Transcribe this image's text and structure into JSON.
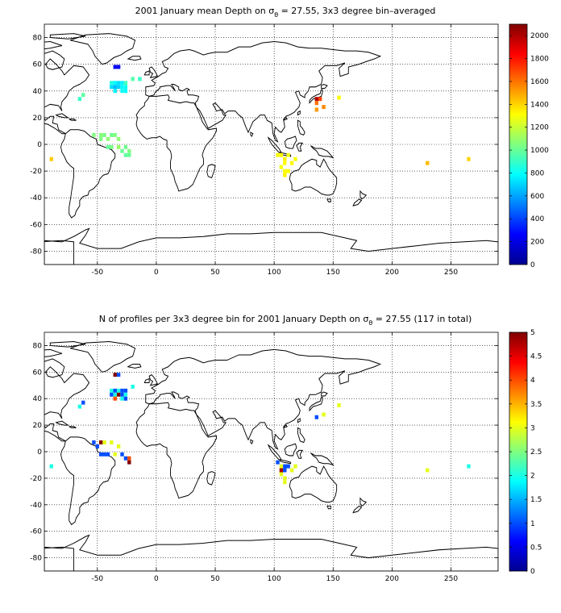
{
  "maps": [
    {
      "title_pre": "2001 January mean Depth on σ",
      "title_sub": "θ",
      "title_post": " = 27.55, 3x3 degree bin–averaged",
      "xlim": [
        -95,
        290
      ],
      "ylim": [
        -90,
        90
      ],
      "x_ticks": [
        "-50",
        "0",
        "50",
        "100",
        "150",
        "200",
        "250"
      ],
      "y_ticks": [
        "80",
        "60",
        "40",
        "20",
        "0",
        "-20",
        "-40",
        "-60",
        "-80"
      ],
      "colorbar": {
        "min": 0,
        "max": 2100,
        "ticks": [
          "0",
          "200",
          "400",
          "600",
          "800",
          "1000",
          "1200",
          "1400",
          "1600",
          "1800",
          "2000"
        ]
      },
      "cells": [
        {
          "lon": -35,
          "lat": 58,
          "v": 240
        },
        {
          "lon": -32,
          "lat": 58,
          "v": 240
        },
        {
          "lon": -38,
          "lat": 46,
          "v": 850
        },
        {
          "lon": -35,
          "lat": 46,
          "v": 780
        },
        {
          "lon": -32,
          "lat": 46,
          "v": 720
        },
        {
          "lon": -29,
          "lat": 46,
          "v": 760
        },
        {
          "lon": -26,
          "lat": 46,
          "v": 930
        },
        {
          "lon": -20,
          "lat": 49,
          "v": 960
        },
        {
          "lon": -38,
          "lat": 43,
          "v": 720
        },
        {
          "lon": -35,
          "lat": 43,
          "v": 650
        },
        {
          "lon": -32,
          "lat": 43,
          "v": 700
        },
        {
          "lon": -29,
          "lat": 43,
          "v": 780
        },
        {
          "lon": -26,
          "lat": 43,
          "v": 820
        },
        {
          "lon": -35,
          "lat": 40,
          "v": 760
        },
        {
          "lon": -29,
          "lat": 40,
          "v": 820
        },
        {
          "lon": -26,
          "lat": 40,
          "v": 780
        },
        {
          "lon": -14,
          "lat": 49,
          "v": 900
        },
        {
          "lon": -62,
          "lat": 37,
          "v": 980
        },
        {
          "lon": -65,
          "lat": 34,
          "v": 900
        },
        {
          "lon": -53,
          "lat": 7,
          "v": 1050
        },
        {
          "lon": -47,
          "lat": 7,
          "v": 1060
        },
        {
          "lon": -44,
          "lat": 7,
          "v": 1040
        },
        {
          "lon": -38,
          "lat": 7,
          "v": 1020
        },
        {
          "lon": -35,
          "lat": 7,
          "v": 1050
        },
        {
          "lon": -47,
          "lat": 4,
          "v": 1050
        },
        {
          "lon": -41,
          "lat": 4,
          "v": 1080
        },
        {
          "lon": -32,
          "lat": 4,
          "v": 1080
        },
        {
          "lon": -41,
          "lat": -2,
          "v": 1000
        },
        {
          "lon": -38,
          "lat": -2,
          "v": 1030
        },
        {
          "lon": -32,
          "lat": -2,
          "v": 1100
        },
        {
          "lon": -26,
          "lat": -2,
          "v": 1020
        },
        {
          "lon": -29,
          "lat": -5,
          "v": 1000
        },
        {
          "lon": -23,
          "lat": -5,
          "v": 1050
        },
        {
          "lon": -26,
          "lat": -8,
          "v": 980
        },
        {
          "lon": -23,
          "lat": -8,
          "v": 1000
        },
        {
          "lon": -89,
          "lat": -11,
          "v": 1420
        },
        {
          "lon": 103,
          "lat": -8,
          "v": 1300
        },
        {
          "lon": 106,
          "lat": -8,
          "v": 1320
        },
        {
          "lon": 109,
          "lat": -11,
          "v": 1340
        },
        {
          "lon": 112,
          "lat": -8,
          "v": 1280
        },
        {
          "lon": 118,
          "lat": -11,
          "v": 1300
        },
        {
          "lon": 109,
          "lat": -14,
          "v": 1310
        },
        {
          "lon": 115,
          "lat": -14,
          "v": 1330
        },
        {
          "lon": 106,
          "lat": -17,
          "v": 1290
        },
        {
          "lon": 109,
          "lat": -20,
          "v": 1300
        },
        {
          "lon": 112,
          "lat": -20,
          "v": 1310
        },
        {
          "lon": 109,
          "lat": -23,
          "v": 1340
        },
        {
          "lon": 136,
          "lat": 34,
          "v": 2000
        },
        {
          "lon": 139,
          "lat": 34,
          "v": 1700
        },
        {
          "lon": 136,
          "lat": 31,
          "v": 1600
        },
        {
          "lon": 142,
          "lat": 28,
          "v": 1560
        },
        {
          "lon": 136,
          "lat": 26,
          "v": 1520
        },
        {
          "lon": 155,
          "lat": 35,
          "v": 1300
        },
        {
          "lon": 230,
          "lat": -14,
          "v": 1450
        },
        {
          "lon": 265,
          "lat": -11,
          "v": 1400
        }
      ]
    },
    {
      "title_pre": "N of profiles per 3x3 degree bin for 2001 January Depth on σ",
      "title_sub": "θ",
      "title_post": " = 27.55 (117 in total)",
      "xlim": [
        -95,
        290
      ],
      "ylim": [
        -90,
        90
      ],
      "x_ticks": [
        "-50",
        "0",
        "50",
        "100",
        "150",
        "200",
        "250"
      ],
      "y_ticks": [
        "80",
        "60",
        "40",
        "20",
        "0",
        "-20",
        "-40",
        "-60",
        "-80"
      ],
      "colorbar": {
        "min": 0,
        "max": 5,
        "ticks": [
          "0",
          "0.5",
          "1",
          "1.5",
          "2",
          "2.5",
          "3",
          "3.5",
          "4",
          "4.5",
          "5"
        ]
      },
      "cells": [
        {
          "lon": -35,
          "lat": 58,
          "v": 5
        },
        {
          "lon": -32,
          "lat": 58,
          "v": 1
        },
        {
          "lon": -38,
          "lat": 46,
          "v": 2
        },
        {
          "lon": -35,
          "lat": 46,
          "v": 1
        },
        {
          "lon": -32,
          "lat": 46,
          "v": 2
        },
        {
          "lon": -29,
          "lat": 46,
          "v": 1
        },
        {
          "lon": -26,
          "lat": 46,
          "v": 1
        },
        {
          "lon": -20,
          "lat": 49,
          "v": 2
        },
        {
          "lon": -38,
          "lat": 43,
          "v": 1
        },
        {
          "lon": -35,
          "lat": 43,
          "v": 2
        },
        {
          "lon": -32,
          "lat": 43,
          "v": 5
        },
        {
          "lon": -29,
          "lat": 43,
          "v": 1
        },
        {
          "lon": -26,
          "lat": 43,
          "v": 2
        },
        {
          "lon": -35,
          "lat": 40,
          "v": 4
        },
        {
          "lon": -29,
          "lat": 40,
          "v": 2
        },
        {
          "lon": -26,
          "lat": 40,
          "v": 1
        },
        {
          "lon": -62,
          "lat": 37,
          "v": 1
        },
        {
          "lon": -65,
          "lat": 34,
          "v": 2
        },
        {
          "lon": -53,
          "lat": 7,
          "v": 1
        },
        {
          "lon": -47,
          "lat": 7,
          "v": 5
        },
        {
          "lon": -44,
          "lat": 7,
          "v": 3
        },
        {
          "lon": -38,
          "lat": 7,
          "v": 3
        },
        {
          "lon": -32,
          "lat": 4,
          "v": 3
        },
        {
          "lon": -50,
          "lat": 4,
          "v": 1
        },
        {
          "lon": -47,
          "lat": -2,
          "v": 1
        },
        {
          "lon": -44,
          "lat": -2,
          "v": 1
        },
        {
          "lon": -41,
          "lat": -2,
          "v": 1
        },
        {
          "lon": -35,
          "lat": -2,
          "v": 3
        },
        {
          "lon": -29,
          "lat": -2,
          "v": 1
        },
        {
          "lon": -26,
          "lat": -5,
          "v": 1
        },
        {
          "lon": -23,
          "lat": -5,
          "v": 4
        },
        {
          "lon": -23,
          "lat": -8,
          "v": 5
        },
        {
          "lon": -89,
          "lat": -11,
          "v": 2
        },
        {
          "lon": 103,
          "lat": -8,
          "v": 1
        },
        {
          "lon": 106,
          "lat": -11,
          "v": 3
        },
        {
          "lon": 109,
          "lat": -11,
          "v": 1
        },
        {
          "lon": 112,
          "lat": -11,
          "v": 1
        },
        {
          "lon": 106,
          "lat": -14,
          "v": 4.8
        },
        {
          "lon": 109,
          "lat": -14,
          "v": 1
        },
        {
          "lon": 115,
          "lat": -14,
          "v": 3
        },
        {
          "lon": 118,
          "lat": -11,
          "v": 3
        },
        {
          "lon": 106,
          "lat": -17,
          "v": 3
        },
        {
          "lon": 109,
          "lat": -20,
          "v": 3
        },
        {
          "lon": 109,
          "lat": -23,
          "v": 3
        },
        {
          "lon": 136,
          "lat": 26,
          "v": 1
        },
        {
          "lon": 142,
          "lat": 28,
          "v": 3
        },
        {
          "lon": 155,
          "lat": 35,
          "v": 3
        },
        {
          "lon": 230,
          "lat": -14,
          "v": 3
        },
        {
          "lon": 265,
          "lat": -11,
          "v": 2
        }
      ]
    }
  ]
}
